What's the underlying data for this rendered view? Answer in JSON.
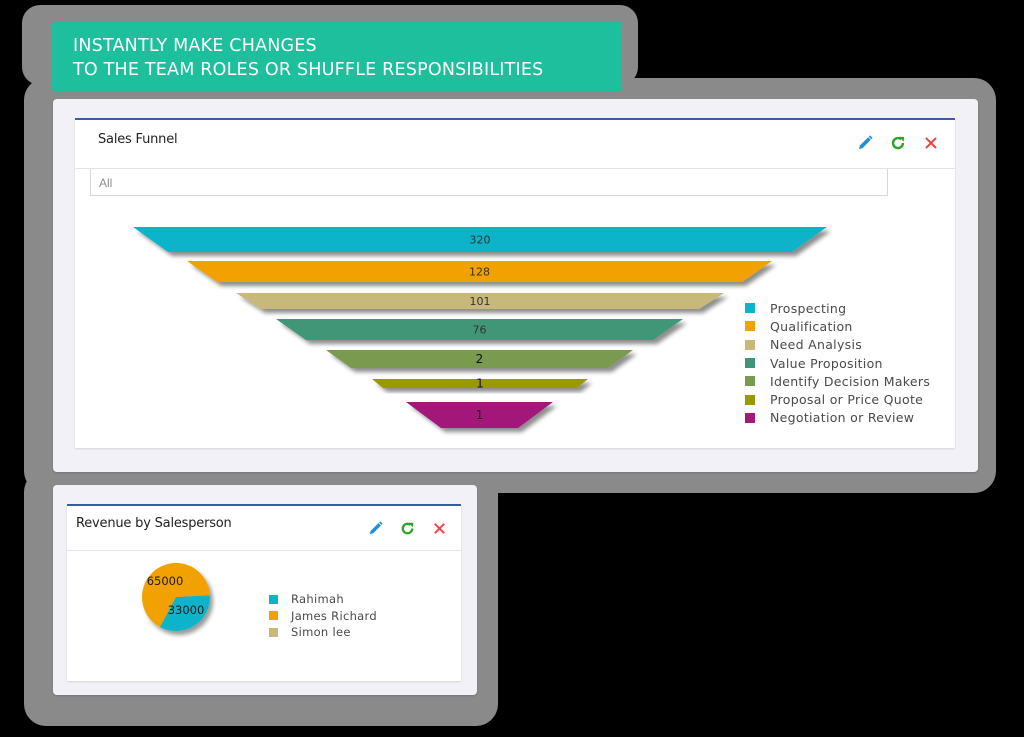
{
  "banner": {
    "line1": "INSTANTLY MAKE CHANGES",
    "line2": "TO THE TEAM ROLES OR SHUFFLE RESPONSIBILITIES",
    "color": "#1ebf9c"
  },
  "sales_funnel": {
    "title": "Sales Funnel",
    "filter": {
      "value": "All"
    },
    "actions": {
      "edit": "pencil-icon",
      "refresh": "refresh-icon",
      "close": "close-icon"
    },
    "legend": [
      {
        "label": "Prospecting",
        "color": "#0cb4c9"
      },
      {
        "label": "Qualification",
        "color": "#f2a200"
      },
      {
        "label": "Need Analysis",
        "color": "#c8b87a"
      },
      {
        "label": "Value Proposition",
        "color": "#3f9676"
      },
      {
        "label": "Identify Decision Makers",
        "color": "#7a9a50"
      },
      {
        "label": "Proposal or Price Quote",
        "color": "#9a9a00"
      },
      {
        "label": "Negotiation or Review",
        "color": "#a3197a"
      }
    ]
  },
  "revenue_by_salesperson": {
    "title": "Revenue by Salesperson",
    "actions": {
      "edit": "pencil-icon",
      "refresh": "refresh-icon",
      "close": "close-icon"
    },
    "legend": [
      {
        "label": "Rahimah",
        "color": "#0cb4c9"
      },
      {
        "label": "James Richard",
        "color": "#f2a200"
      },
      {
        "label": "Simon lee",
        "color": "#c8b87a"
      }
    ]
  },
  "chart_data": [
    {
      "type": "funnel",
      "title": "Sales Funnel",
      "categories": [
        "Prospecting",
        "Qualification",
        "Need Analysis",
        "Value Proposition",
        "Identify Decision Makers",
        "Proposal or Price Quote",
        "Negotiation or Review"
      ],
      "values": [
        320,
        128,
        101,
        76,
        2,
        1,
        1
      ],
      "labels": [
        "320",
        "128",
        "101",
        "76",
        "2",
        "1",
        "1"
      ],
      "colors": [
        "#0cb4c9",
        "#f2a200",
        "#c8b87a",
        "#3f9676",
        "#7a9a50",
        "#9a9a00",
        "#a3197a"
      ],
      "legend_position": "right"
    },
    {
      "type": "pie",
      "title": "Revenue by Salesperson",
      "categories": [
        "Rahimah",
        "James Richard",
        "Simon lee"
      ],
      "values": [
        33000,
        65000,
        0
      ],
      "labels": [
        "33000",
        "65000",
        ""
      ],
      "colors": [
        "#0cb4c9",
        "#f2a200",
        "#c8b87a"
      ],
      "legend_position": "right"
    }
  ]
}
